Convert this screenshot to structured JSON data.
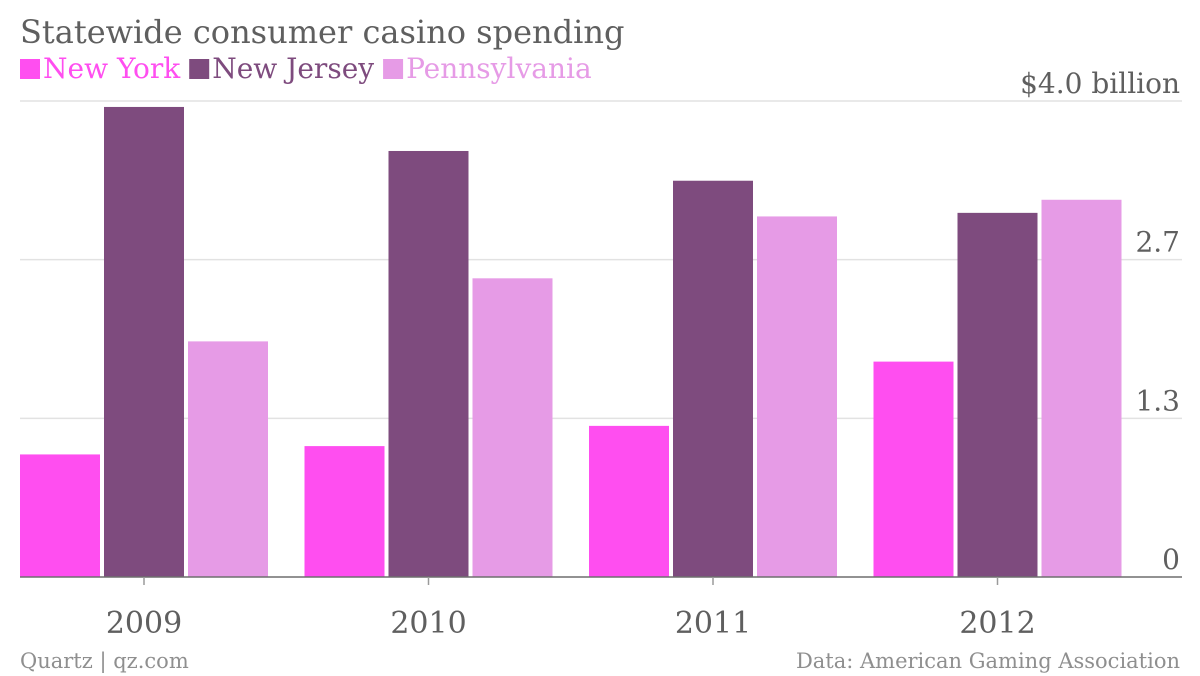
{
  "chart_data": {
    "type": "bar",
    "title": "Statewide consumer casino spending",
    "categories": [
      "2009",
      "2010",
      "2011",
      "2012"
    ],
    "series": [
      {
        "name": "New York",
        "color": "#ff4ef0",
        "values": [
          1.03,
          1.1,
          1.27,
          1.81
        ]
      },
      {
        "name": "New Jersey",
        "color": "#7e4b7e",
        "values": [
          3.95,
          3.58,
          3.33,
          3.06
        ]
      },
      {
        "name": "Pennsylvania",
        "color": "#e69be6",
        "values": [
          1.98,
          2.51,
          3.03,
          3.17
        ]
      }
    ],
    "ylim": [
      0,
      4.0
    ],
    "yticks": [
      {
        "value": 0,
        "label": "0"
      },
      {
        "value": 1.333,
        "label": "1.3"
      },
      {
        "value": 2.667,
        "label": "2.7"
      },
      {
        "value": 4.0,
        "label": "$4.0 billion"
      }
    ],
    "y_axis_position": "right",
    "legend_position": "top-left",
    "grid": true
  },
  "footer": {
    "source_left": "Quartz | qz.com",
    "source_right": "Data: American Gaming Association"
  }
}
